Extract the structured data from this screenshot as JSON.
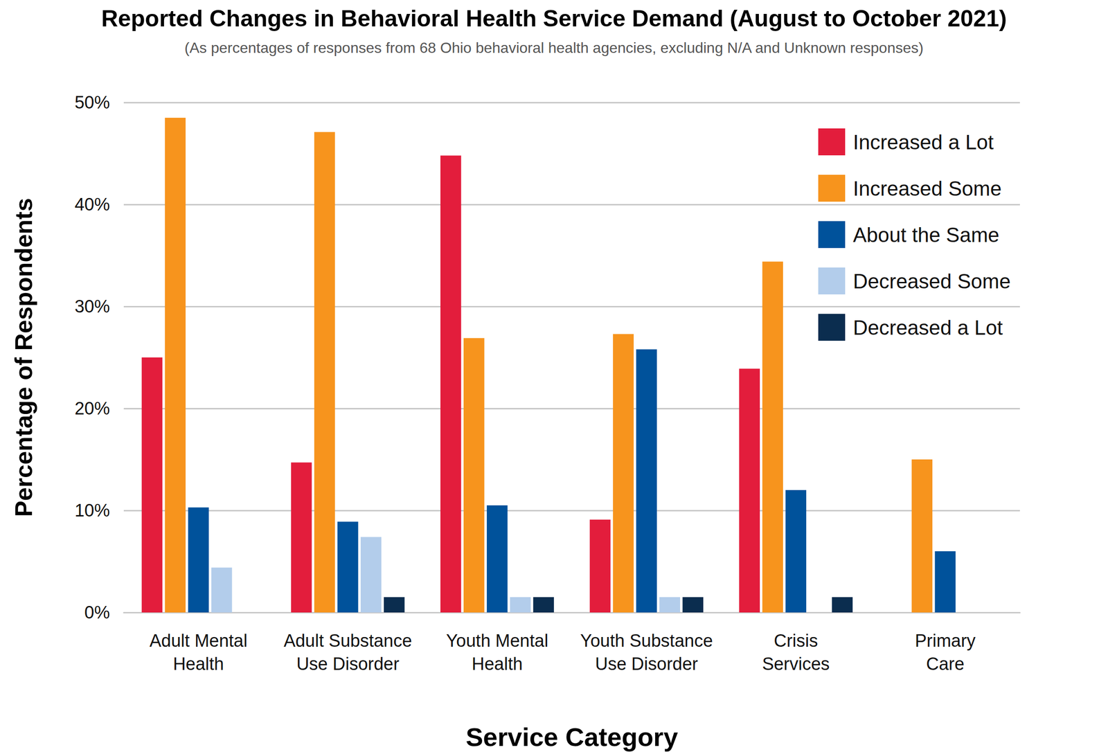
{
  "chart_data": {
    "type": "bar",
    "title": "Reported Changes in Behavioral Health Service Demand (August to October 2021)",
    "subtitle": "(As percentages of responses from 68 Ohio behavioral health agencies, excluding N/A and Unknown responses)",
    "x_label": "Service Category",
    "y_label": "Percentage of Respondents",
    "categories": [
      "Adult Mental Health",
      "Adult Substance Use Disorder",
      "Youth Mental Health",
      "Youth Substance Use Disorder",
      "Crisis Services",
      "Primary Care"
    ],
    "series": [
      {
        "name": "Increased a Lot",
        "color": "#e31d3c",
        "values": [
          25.0,
          14.7,
          44.8,
          9.1,
          23.9,
          0
        ]
      },
      {
        "name": "Increased Some",
        "color": "#f7941d",
        "values": [
          48.5,
          47.1,
          26.9,
          27.3,
          34.4,
          15.0
        ]
      },
      {
        "name": "About the Same",
        "color": "#00529b",
        "values": [
          10.3,
          8.9,
          10.5,
          25.8,
          12.0,
          6.0
        ]
      },
      {
        "name": "Decreased Some",
        "color": "#b3cdeb",
        "values": [
          4.4,
          7.4,
          1.5,
          1.5,
          0,
          0
        ]
      },
      {
        "name": "Decreased a Lot",
        "color": "#0b2d4f",
        "values": [
          0,
          1.5,
          1.5,
          1.5,
          1.5,
          0
        ]
      }
    ],
    "ylim": [
      0,
      50
    ],
    "yticks": [
      {
        "value": 0,
        "label": "0%"
      },
      {
        "value": 10,
        "label": "10%"
      },
      {
        "value": 20,
        "label": "20%"
      },
      {
        "value": 30,
        "label": "30%"
      },
      {
        "value": 40,
        "label": "40%"
      },
      {
        "value": 50,
        "label": "50%"
      }
    ],
    "grid": true,
    "legend": "upper right"
  }
}
